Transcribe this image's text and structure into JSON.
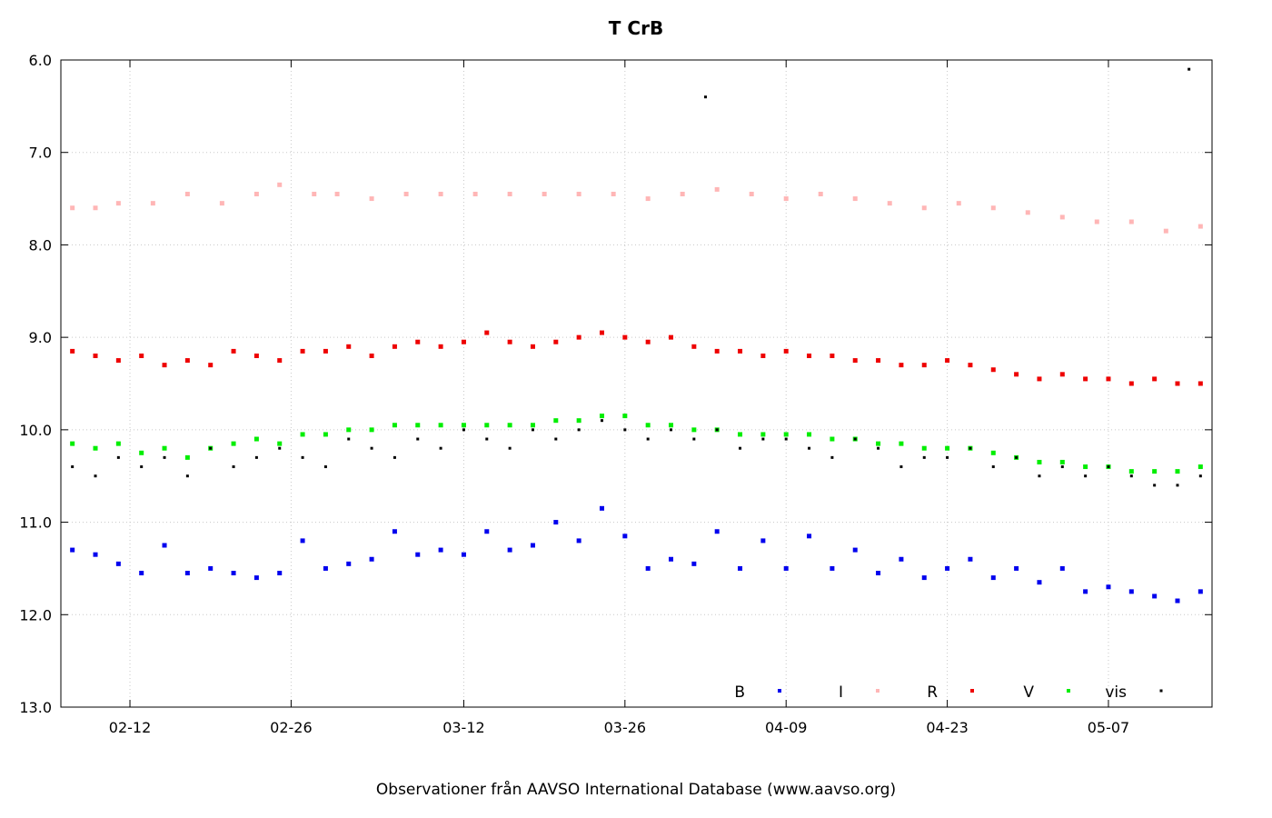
{
  "chart_data": {
    "type": "scatter",
    "title": "T CrB",
    "caption": "Observationer från AAVSO International Database (www.aavso.org)",
    "xlabel": "",
    "ylabel": "",
    "y_inverted": true,
    "ylim": [
      13.0,
      6.0
    ],
    "xlim": [
      "2024-02-06",
      "2024-05-16"
    ],
    "grid": true,
    "legend_position": "bottom-right",
    "y_ticks": [
      "6.0",
      "7.0",
      "8.0",
      "9.0",
      "10.0",
      "11.0",
      "12.0",
      "13.0"
    ],
    "x_ticks": [
      {
        "date": "2024-02-12",
        "label": "02-12"
      },
      {
        "date": "2024-02-26",
        "label": "02-26"
      },
      {
        "date": "2024-03-12",
        "label": "03-12"
      },
      {
        "date": "2024-03-26",
        "label": "03-26"
      },
      {
        "date": "2024-04-09",
        "label": "04-09"
      },
      {
        "date": "2024-04-23",
        "label": "04-23"
      },
      {
        "date": "2024-05-07",
        "label": "05-07"
      }
    ],
    "series": [
      {
        "name": "B",
        "color": "#0000ee",
        "points": [
          [
            "2024-02-07",
            11.3
          ],
          [
            "2024-02-09",
            11.35
          ],
          [
            "2024-02-11",
            11.45
          ],
          [
            "2024-02-13",
            11.55
          ],
          [
            "2024-02-15",
            11.25
          ],
          [
            "2024-02-17",
            11.55
          ],
          [
            "2024-02-19",
            11.5
          ],
          [
            "2024-02-21",
            11.55
          ],
          [
            "2024-02-23",
            11.6
          ],
          [
            "2024-02-25",
            11.55
          ],
          [
            "2024-02-27",
            11.2
          ],
          [
            "2024-02-29",
            11.5
          ],
          [
            "2024-03-02",
            11.45
          ],
          [
            "2024-03-04",
            11.4
          ],
          [
            "2024-03-06",
            11.1
          ],
          [
            "2024-03-08",
            11.35
          ],
          [
            "2024-03-10",
            11.3
          ],
          [
            "2024-03-12",
            11.35
          ],
          [
            "2024-03-14",
            11.1
          ],
          [
            "2024-03-16",
            11.3
          ],
          [
            "2024-03-18",
            11.25
          ],
          [
            "2024-03-20",
            11.0
          ],
          [
            "2024-03-22",
            11.2
          ],
          [
            "2024-03-24",
            10.85
          ],
          [
            "2024-03-26",
            11.15
          ],
          [
            "2024-03-28",
            11.5
          ],
          [
            "2024-03-30",
            11.4
          ],
          [
            "2024-04-01",
            11.45
          ],
          [
            "2024-04-03",
            11.1
          ],
          [
            "2024-04-05",
            11.5
          ],
          [
            "2024-04-07",
            11.2
          ],
          [
            "2024-04-09",
            11.5
          ],
          [
            "2024-04-11",
            11.15
          ],
          [
            "2024-04-13",
            11.5
          ],
          [
            "2024-04-15",
            11.3
          ],
          [
            "2024-04-17",
            11.55
          ],
          [
            "2024-04-19",
            11.4
          ],
          [
            "2024-04-21",
            11.6
          ],
          [
            "2024-04-23",
            11.5
          ],
          [
            "2024-04-25",
            11.4
          ],
          [
            "2024-04-27",
            11.6
          ],
          [
            "2024-04-29",
            11.5
          ],
          [
            "2024-05-01",
            11.65
          ],
          [
            "2024-05-03",
            11.5
          ],
          [
            "2024-05-05",
            11.75
          ],
          [
            "2024-05-07",
            11.7
          ],
          [
            "2024-05-09",
            11.75
          ],
          [
            "2024-05-11",
            11.8
          ],
          [
            "2024-05-13",
            11.85
          ],
          [
            "2024-05-15",
            11.75
          ]
        ]
      },
      {
        "name": "I",
        "color": "#ffb6b6",
        "points": [
          [
            "2024-02-07",
            7.6
          ],
          [
            "2024-02-09",
            7.6
          ],
          [
            "2024-02-11",
            7.55
          ],
          [
            "2024-02-14",
            7.55
          ],
          [
            "2024-02-17",
            7.45
          ],
          [
            "2024-02-20",
            7.55
          ],
          [
            "2024-02-23",
            7.45
          ],
          [
            "2024-02-25",
            7.35
          ],
          [
            "2024-02-28",
            7.45
          ],
          [
            "2024-03-01",
            7.45
          ],
          [
            "2024-03-04",
            7.5
          ],
          [
            "2024-03-07",
            7.45
          ],
          [
            "2024-03-10",
            7.45
          ],
          [
            "2024-03-13",
            7.45
          ],
          [
            "2024-03-16",
            7.45
          ],
          [
            "2024-03-19",
            7.45
          ],
          [
            "2024-03-22",
            7.45
          ],
          [
            "2024-03-25",
            7.45
          ],
          [
            "2024-03-28",
            7.5
          ],
          [
            "2024-03-31",
            7.45
          ],
          [
            "2024-04-03",
            7.4
          ],
          [
            "2024-04-06",
            7.45
          ],
          [
            "2024-04-09",
            7.5
          ],
          [
            "2024-04-12",
            7.45
          ],
          [
            "2024-04-15",
            7.5
          ],
          [
            "2024-04-18",
            7.55
          ],
          [
            "2024-04-21",
            7.6
          ],
          [
            "2024-04-24",
            7.55
          ],
          [
            "2024-04-27",
            7.6
          ],
          [
            "2024-04-30",
            7.65
          ],
          [
            "2024-05-03",
            7.7
          ],
          [
            "2024-05-06",
            7.75
          ],
          [
            "2024-05-09",
            7.75
          ],
          [
            "2024-05-12",
            7.85
          ],
          [
            "2024-05-15",
            7.8
          ]
        ]
      },
      {
        "name": "R",
        "color": "#ee0000",
        "points": [
          [
            "2024-02-07",
            9.15
          ],
          [
            "2024-02-09",
            9.2
          ],
          [
            "2024-02-11",
            9.25
          ],
          [
            "2024-02-13",
            9.2
          ],
          [
            "2024-02-15",
            9.3
          ],
          [
            "2024-02-17",
            9.25
          ],
          [
            "2024-02-19",
            9.3
          ],
          [
            "2024-02-21",
            9.15
          ],
          [
            "2024-02-23",
            9.2
          ],
          [
            "2024-02-25",
            9.25
          ],
          [
            "2024-02-27",
            9.15
          ],
          [
            "2024-02-29",
            9.15
          ],
          [
            "2024-03-02",
            9.1
          ],
          [
            "2024-03-04",
            9.2
          ],
          [
            "2024-03-06",
            9.1
          ],
          [
            "2024-03-08",
            9.05
          ],
          [
            "2024-03-10",
            9.1
          ],
          [
            "2024-03-12",
            9.05
          ],
          [
            "2024-03-14",
            8.95
          ],
          [
            "2024-03-16",
            9.05
          ],
          [
            "2024-03-18",
            9.1
          ],
          [
            "2024-03-20",
            9.05
          ],
          [
            "2024-03-22",
            9.0
          ],
          [
            "2024-03-24",
            8.95
          ],
          [
            "2024-03-26",
            9.0
          ],
          [
            "2024-03-28",
            9.05
          ],
          [
            "2024-03-30",
            9.0
          ],
          [
            "2024-04-01",
            9.1
          ],
          [
            "2024-04-03",
            9.15
          ],
          [
            "2024-04-05",
            9.15
          ],
          [
            "2024-04-07",
            9.2
          ],
          [
            "2024-04-09",
            9.15
          ],
          [
            "2024-04-11",
            9.2
          ],
          [
            "2024-04-13",
            9.2
          ],
          [
            "2024-04-15",
            9.25
          ],
          [
            "2024-04-17",
            9.25
          ],
          [
            "2024-04-19",
            9.3
          ],
          [
            "2024-04-21",
            9.3
          ],
          [
            "2024-04-23",
            9.25
          ],
          [
            "2024-04-25",
            9.3
          ],
          [
            "2024-04-27",
            9.35
          ],
          [
            "2024-04-29",
            9.4
          ],
          [
            "2024-05-01",
            9.45
          ],
          [
            "2024-05-03",
            9.4
          ],
          [
            "2024-05-05",
            9.45
          ],
          [
            "2024-05-07",
            9.45
          ],
          [
            "2024-05-09",
            9.5
          ],
          [
            "2024-05-11",
            9.45
          ],
          [
            "2024-05-13",
            9.5
          ],
          [
            "2024-05-15",
            9.5
          ]
        ]
      },
      {
        "name": "V",
        "color": "#00ee00",
        "points": [
          [
            "2024-02-07",
            10.15
          ],
          [
            "2024-02-09",
            10.2
          ],
          [
            "2024-02-11",
            10.15
          ],
          [
            "2024-02-13",
            10.25
          ],
          [
            "2024-02-15",
            10.2
          ],
          [
            "2024-02-17",
            10.3
          ],
          [
            "2024-02-19",
            10.2
          ],
          [
            "2024-02-21",
            10.15
          ],
          [
            "2024-02-23",
            10.1
          ],
          [
            "2024-02-25",
            10.15
          ],
          [
            "2024-02-27",
            10.05
          ],
          [
            "2024-02-29",
            10.05
          ],
          [
            "2024-03-02",
            10.0
          ],
          [
            "2024-03-04",
            10.0
          ],
          [
            "2024-03-06",
            9.95
          ],
          [
            "2024-03-08",
            9.95
          ],
          [
            "2024-03-10",
            9.95
          ],
          [
            "2024-03-12",
            9.95
          ],
          [
            "2024-03-14",
            9.95
          ],
          [
            "2024-03-16",
            9.95
          ],
          [
            "2024-03-18",
            9.95
          ],
          [
            "2024-03-20",
            9.9
          ],
          [
            "2024-03-22",
            9.9
          ],
          [
            "2024-03-24",
            9.85
          ],
          [
            "2024-03-26",
            9.85
          ],
          [
            "2024-03-28",
            9.95
          ],
          [
            "2024-03-30",
            9.95
          ],
          [
            "2024-04-01",
            10.0
          ],
          [
            "2024-04-03",
            10.0
          ],
          [
            "2024-04-05",
            10.05
          ],
          [
            "2024-04-07",
            10.05
          ],
          [
            "2024-04-09",
            10.05
          ],
          [
            "2024-04-11",
            10.05
          ],
          [
            "2024-04-13",
            10.1
          ],
          [
            "2024-04-15",
            10.1
          ],
          [
            "2024-04-17",
            10.15
          ],
          [
            "2024-04-19",
            10.15
          ],
          [
            "2024-04-21",
            10.2
          ],
          [
            "2024-04-23",
            10.2
          ],
          [
            "2024-04-25",
            10.2
          ],
          [
            "2024-04-27",
            10.25
          ],
          [
            "2024-04-29",
            10.3
          ],
          [
            "2024-05-01",
            10.35
          ],
          [
            "2024-05-03",
            10.35
          ],
          [
            "2024-05-05",
            10.4
          ],
          [
            "2024-05-07",
            10.4
          ],
          [
            "2024-05-09",
            10.45
          ],
          [
            "2024-05-11",
            10.45
          ],
          [
            "2024-05-13",
            10.45
          ],
          [
            "2024-05-15",
            10.4
          ]
        ]
      },
      {
        "name": "vis",
        "color": "#000000",
        "points": [
          [
            "2024-02-07",
            10.4
          ],
          [
            "2024-02-09",
            10.5
          ],
          [
            "2024-02-11",
            10.3
          ],
          [
            "2024-02-13",
            10.4
          ],
          [
            "2024-02-15",
            10.3
          ],
          [
            "2024-02-17",
            10.5
          ],
          [
            "2024-02-19",
            10.2
          ],
          [
            "2024-02-21",
            10.4
          ],
          [
            "2024-02-23",
            10.3
          ],
          [
            "2024-02-25",
            10.2
          ],
          [
            "2024-02-27",
            10.3
          ],
          [
            "2024-02-29",
            10.4
          ],
          [
            "2024-03-02",
            10.1
          ],
          [
            "2024-03-04",
            10.2
          ],
          [
            "2024-03-06",
            10.3
          ],
          [
            "2024-03-08",
            10.1
          ],
          [
            "2024-03-10",
            10.2
          ],
          [
            "2024-03-12",
            10.0
          ],
          [
            "2024-03-14",
            10.1
          ],
          [
            "2024-03-16",
            10.2
          ],
          [
            "2024-03-18",
            10.0
          ],
          [
            "2024-03-20",
            10.1
          ],
          [
            "2024-03-22",
            10.0
          ],
          [
            "2024-03-24",
            9.9
          ],
          [
            "2024-03-26",
            10.0
          ],
          [
            "2024-03-28",
            10.1
          ],
          [
            "2024-03-30",
            10.0
          ],
          [
            "2024-04-01",
            10.1
          ],
          [
            "2024-04-03",
            10.0
          ],
          [
            "2024-04-05",
            10.2
          ],
          [
            "2024-04-07",
            10.1
          ],
          [
            "2024-04-09",
            10.1
          ],
          [
            "2024-04-11",
            10.2
          ],
          [
            "2024-04-13",
            10.3
          ],
          [
            "2024-04-15",
            10.1
          ],
          [
            "2024-04-17",
            10.2
          ],
          [
            "2024-04-19",
            10.4
          ],
          [
            "2024-04-21",
            10.3
          ],
          [
            "2024-04-23",
            10.3
          ],
          [
            "2024-04-25",
            10.2
          ],
          [
            "2024-04-27",
            10.4
          ],
          [
            "2024-04-29",
            10.3
          ],
          [
            "2024-05-01",
            10.5
          ],
          [
            "2024-05-03",
            10.4
          ],
          [
            "2024-05-05",
            10.5
          ],
          [
            "2024-05-07",
            10.4
          ],
          [
            "2024-05-09",
            10.5
          ],
          [
            "2024-05-11",
            10.6
          ],
          [
            "2024-05-13",
            10.6
          ],
          [
            "2024-05-15",
            10.5
          ],
          [
            "2024-04-02",
            6.4
          ],
          [
            "2024-05-14",
            6.1
          ]
        ]
      }
    ]
  }
}
